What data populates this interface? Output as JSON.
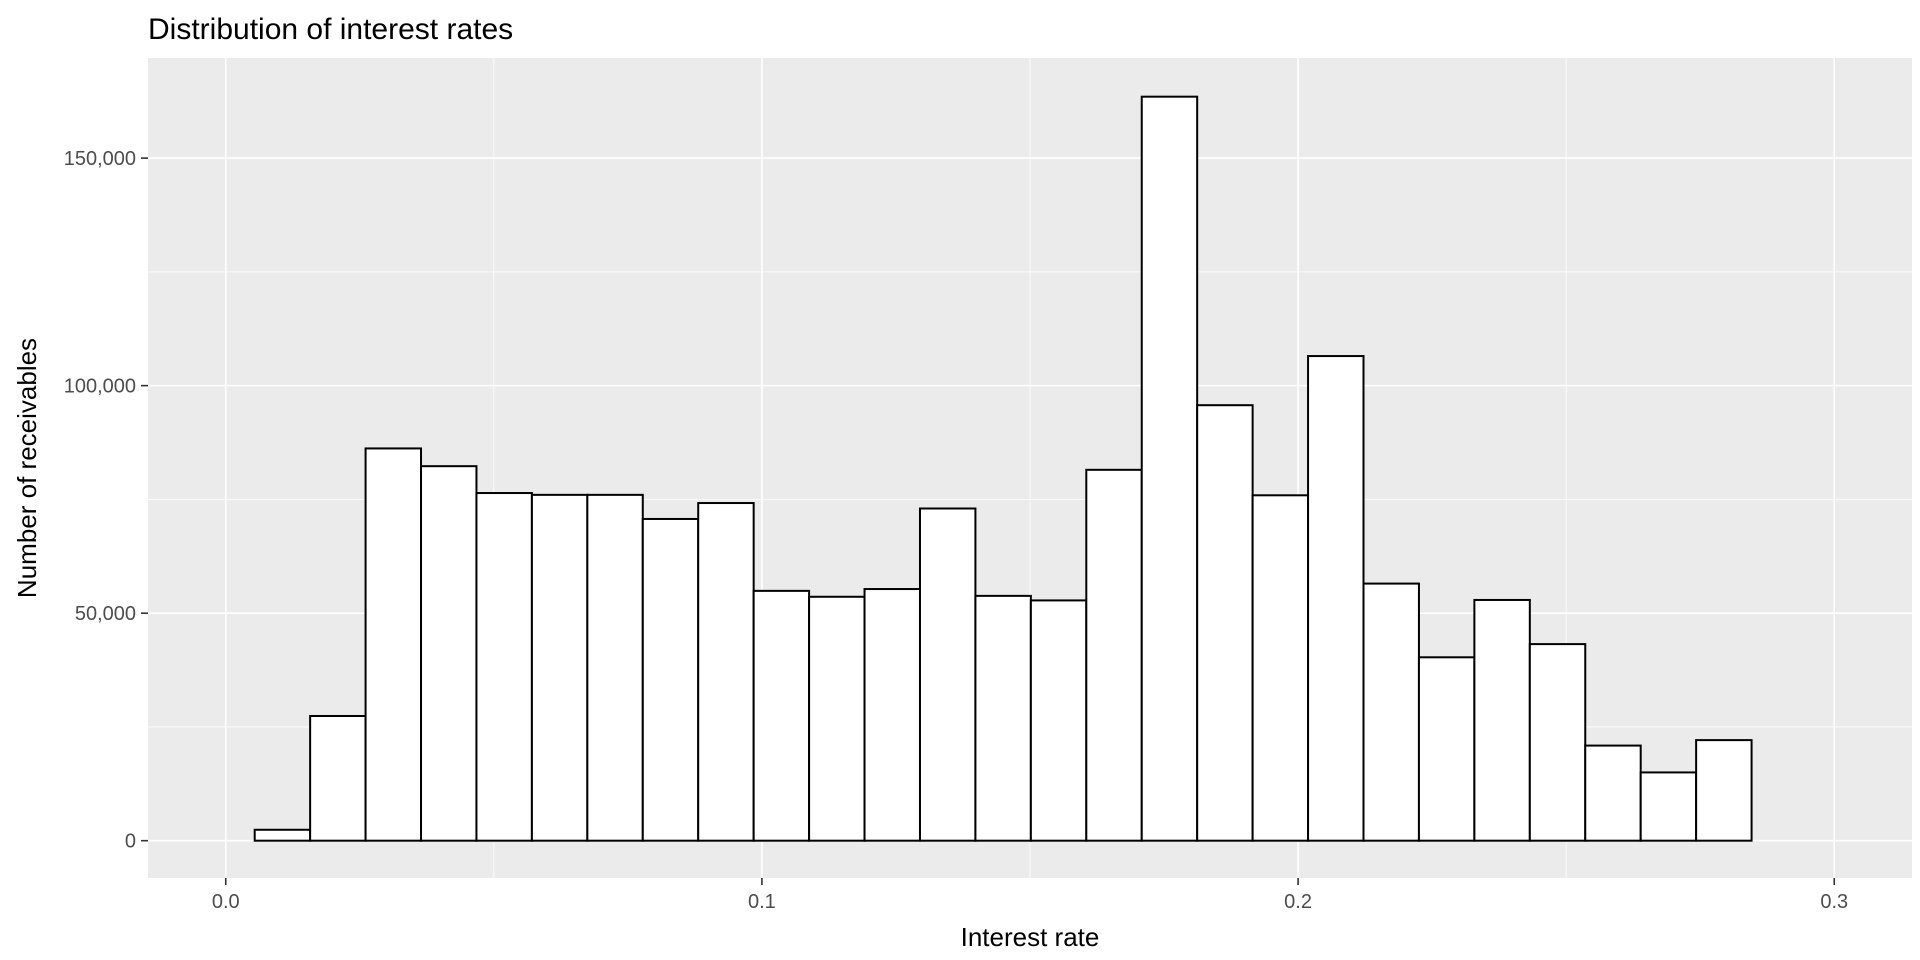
{
  "chart_data": {
    "type": "bar",
    "title": "Distribution of interest rates",
    "xlabel": "Interest rate",
    "ylabel": "Number of receivables",
    "xlim": [
      -0.0145,
      0.3145
    ],
    "ylim": [
      -8200,
      172000
    ],
    "x_ticks": [
      0.0,
      0.1,
      0.2,
      0.3
    ],
    "x_tick_labels": [
      "0.0",
      "0.1",
      "0.2",
      "0.3"
    ],
    "y_ticks": [
      0,
      50000,
      100000,
      150000
    ],
    "y_tick_labels": [
      "0",
      "50,000",
      "100,000",
      "150,000"
    ],
    "bin_start": 0.0054,
    "bin_width": 0.01034,
    "values": [
      2400,
      27400,
      86200,
      82300,
      76400,
      76000,
      76000,
      70700,
      74200,
      54900,
      53600,
      55300,
      73000,
      53800,
      52800,
      81500,
      163500,
      95700,
      75900,
      106500,
      56500,
      40300,
      52900,
      43200,
      20900,
      15000,
      22100,
      0
    ],
    "grid": true,
    "panel_background": "#ebebeb",
    "bar_fill": "#ffffff",
    "bar_outline": "#000000"
  }
}
